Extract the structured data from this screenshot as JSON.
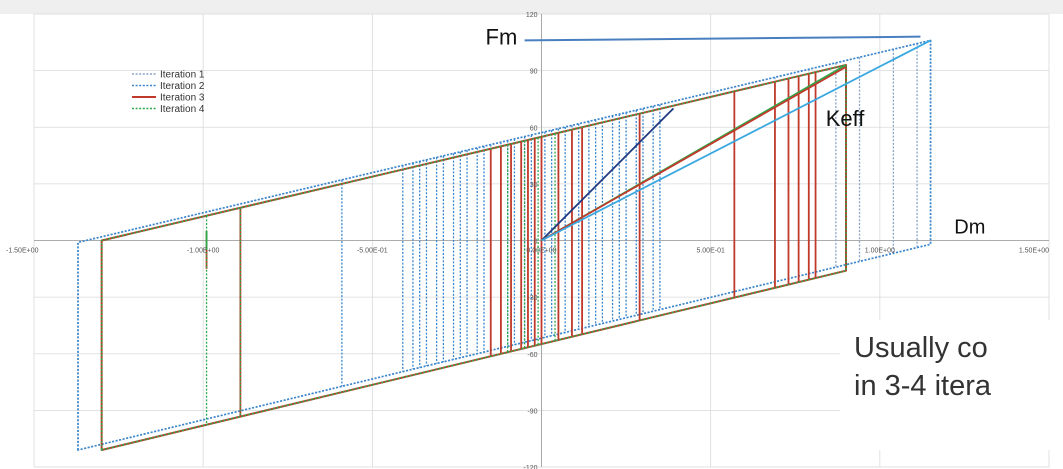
{
  "chart_data": {
    "type": "line",
    "title": "",
    "xlabel": "",
    "ylabel": "",
    "xlim": [
      -1.5,
      1.5
    ],
    "ylim": [
      -120,
      120
    ],
    "x_ticks": [
      {
        "value": -1.5,
        "label": "-1.50E+00"
      },
      {
        "value": -1.0,
        "label": "-1.00E+00"
      },
      {
        "value": -0.5,
        "label": "-5.00E-01"
      },
      {
        "value": 0.0,
        "label": "0.00E+00"
      },
      {
        "value": 0.5,
        "label": "5.00E-01"
      },
      {
        "value": 1.0,
        "label": "1.00E+00"
      },
      {
        "value": 1.5,
        "label": "1.50E+00"
      }
    ],
    "y_ticks": [
      {
        "value": 120,
        "label": "120"
      },
      {
        "value": 90,
        "label": "90"
      },
      {
        "value": 60,
        "label": "60"
      },
      {
        "value": 30,
        "label": "30"
      },
      {
        "value": 0,
        "label": "0"
      },
      {
        "value": -30,
        "label": "-30"
      },
      {
        "value": -60,
        "label": "-60"
      },
      {
        "value": -90,
        "label": "-90"
      },
      {
        "value": -120,
        "label": "-120"
      }
    ],
    "grid": true,
    "legend_position": "top-left",
    "series": [
      {
        "name": "Iteration 1",
        "color": "#8aa4c8",
        "style": "dotted",
        "loop": [
          [
            -1.37,
            -111
          ],
          [
            -1.37,
            -1
          ],
          [
            1.15,
            106
          ],
          [
            1.15,
            -2
          ]
        ],
        "unload_x": [
          0.69,
          0.79,
          0.87,
          0.94,
          1.04,
          1.11
        ]
      },
      {
        "name": "Iteration 2",
        "color": "#3a87d0",
        "style": "dotted",
        "loop": [
          [
            -1.37,
            -111
          ],
          [
            -1.37,
            -1
          ],
          [
            1.15,
            106
          ],
          [
            1.15,
            -2
          ]
        ],
        "unload_x": [
          -0.59,
          -0.41,
          -0.38,
          -0.36,
          -0.34,
          -0.31,
          -0.29,
          -0.26,
          -0.24,
          -0.22,
          -0.19,
          -0.17,
          -0.15,
          -0.12,
          -0.1,
          -0.08,
          -0.05,
          -0.03,
          0.01,
          0.03,
          0.05,
          0.07,
          0.09,
          0.11,
          0.14,
          0.16,
          0.18,
          0.21,
          0.23,
          0.25,
          0.28,
          0.3,
          0.33,
          0.35
        ]
      },
      {
        "name": "Iteration 3",
        "color": "#c0392b",
        "style": "solid",
        "loop": [
          [
            -1.3,
            -111
          ],
          [
            -1.3,
            0
          ],
          [
            0.9,
            93
          ],
          [
            0.9,
            -16
          ]
        ],
        "unload_x": [
          -0.89,
          -0.15,
          -0.12,
          -0.09,
          -0.06,
          -0.04,
          -0.02,
          0.0,
          0.05,
          0.09,
          0.12,
          0.29,
          0.57,
          0.69,
          0.73,
          0.76,
          0.79,
          0.81
        ],
        "stub": {
          "x": -0.99,
          "y1": 5,
          "y2": -15
        }
      },
      {
        "name": "Iteration 4",
        "color": "#2ea84a",
        "style": "dotted",
        "loop": [
          [
            -1.3,
            -111
          ],
          [
            -1.3,
            0
          ],
          [
            0.9,
            93
          ],
          [
            0.9,
            -16
          ]
        ],
        "unload_x": [
          -0.89,
          -0.99,
          -0.1,
          -0.05,
          -0.01,
          0.04
        ],
        "stub": {
          "x": -0.99,
          "y1": 5,
          "y2": -5
        }
      }
    ],
    "secant_lines": [
      {
        "name": "dark-blue-secant",
        "color": "#1f3a80",
        "from": [
          0,
          0
        ],
        "to": [
          0.39,
          70
        ]
      },
      {
        "name": "green-secant",
        "color": "#2ea84a",
        "from": [
          0,
          0
        ],
        "to": [
          0.9,
          93
        ]
      },
      {
        "name": "red-secant",
        "color": "#c0392b",
        "from": [
          0,
          0
        ],
        "to": [
          0.9,
          92
        ]
      },
      {
        "name": "light-blue-secant",
        "color": "#3aa8e0",
        "from": [
          0,
          0
        ],
        "to": [
          1.15,
          106
        ]
      }
    ],
    "annotations": [
      {
        "text": "Fm",
        "x": 0.0,
        "y": 108
      },
      {
        "text": "Keff",
        "x": 0.84,
        "y": 65
      },
      {
        "text": "Dm",
        "x": 1.22,
        "y": 8
      }
    ],
    "fm_pointer": {
      "color": "#4a7fbf",
      "from": [
        -0.05,
        106
      ],
      "to": [
        1.12,
        108
      ]
    },
    "caption_lines": [
      "Usually co",
      "in 3-4 itera"
    ]
  }
}
